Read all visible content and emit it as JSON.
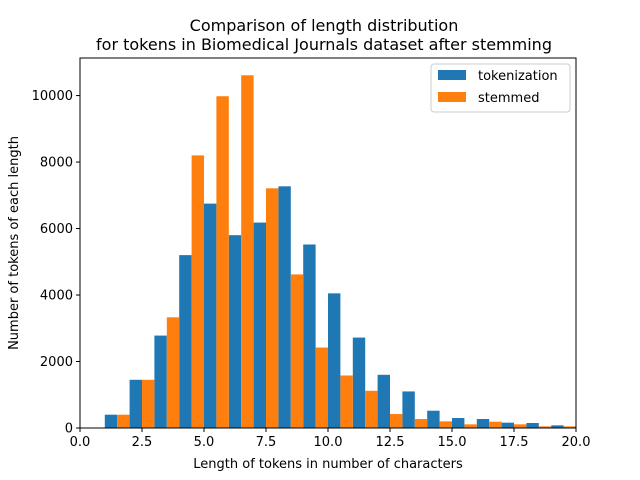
{
  "chart_data": {
    "type": "bar",
    "title_line1": "Comparison of length distribution",
    "title_line2": "for tokens in Biomedical Journals dataset after stemming",
    "xlabel": "Length of tokens in number of characters",
    "ylabel": "Number of tokens of each length",
    "xlim": [
      0,
      20
    ],
    "ylim": [
      0,
      11130
    ],
    "xticks": [
      0.0,
      2.5,
      5.0,
      7.5,
      10.0,
      12.5,
      15.0,
      17.5,
      20.0
    ],
    "xtick_labels": [
      "0.0",
      "2.5",
      "5.0",
      "7.5",
      "10.0",
      "12.5",
      "15.0",
      "17.5",
      "20.0"
    ],
    "yticks": [
      0,
      2000,
      4000,
      6000,
      8000,
      10000
    ],
    "ytick_labels": [
      "0",
      "2000",
      "4000",
      "6000",
      "8000",
      "10000"
    ],
    "grid": false,
    "legend_position": "top-right",
    "bin_edges": [
      1,
      2,
      3,
      4,
      5,
      6,
      7,
      8,
      9,
      10,
      11,
      12,
      13,
      14,
      15,
      16,
      17,
      18,
      19,
      20
    ],
    "series": [
      {
        "name": "tokenization",
        "color": "#1f77b4",
        "values": [
          400,
          1450,
          2780,
          5200,
          6750,
          5800,
          6180,
          7270,
          5520,
          4050,
          2720,
          1600,
          1100,
          520,
          300,
          270,
          160,
          150,
          80
        ]
      },
      {
        "name": "stemmed",
        "color": "#ff7f0e",
        "values": [
          400,
          1450,
          3330,
          8200,
          9980,
          10610,
          7210,
          4620,
          2420,
          1580,
          1120,
          420,
          270,
          200,
          110,
          190,
          110,
          50,
          50
        ]
      }
    ]
  }
}
